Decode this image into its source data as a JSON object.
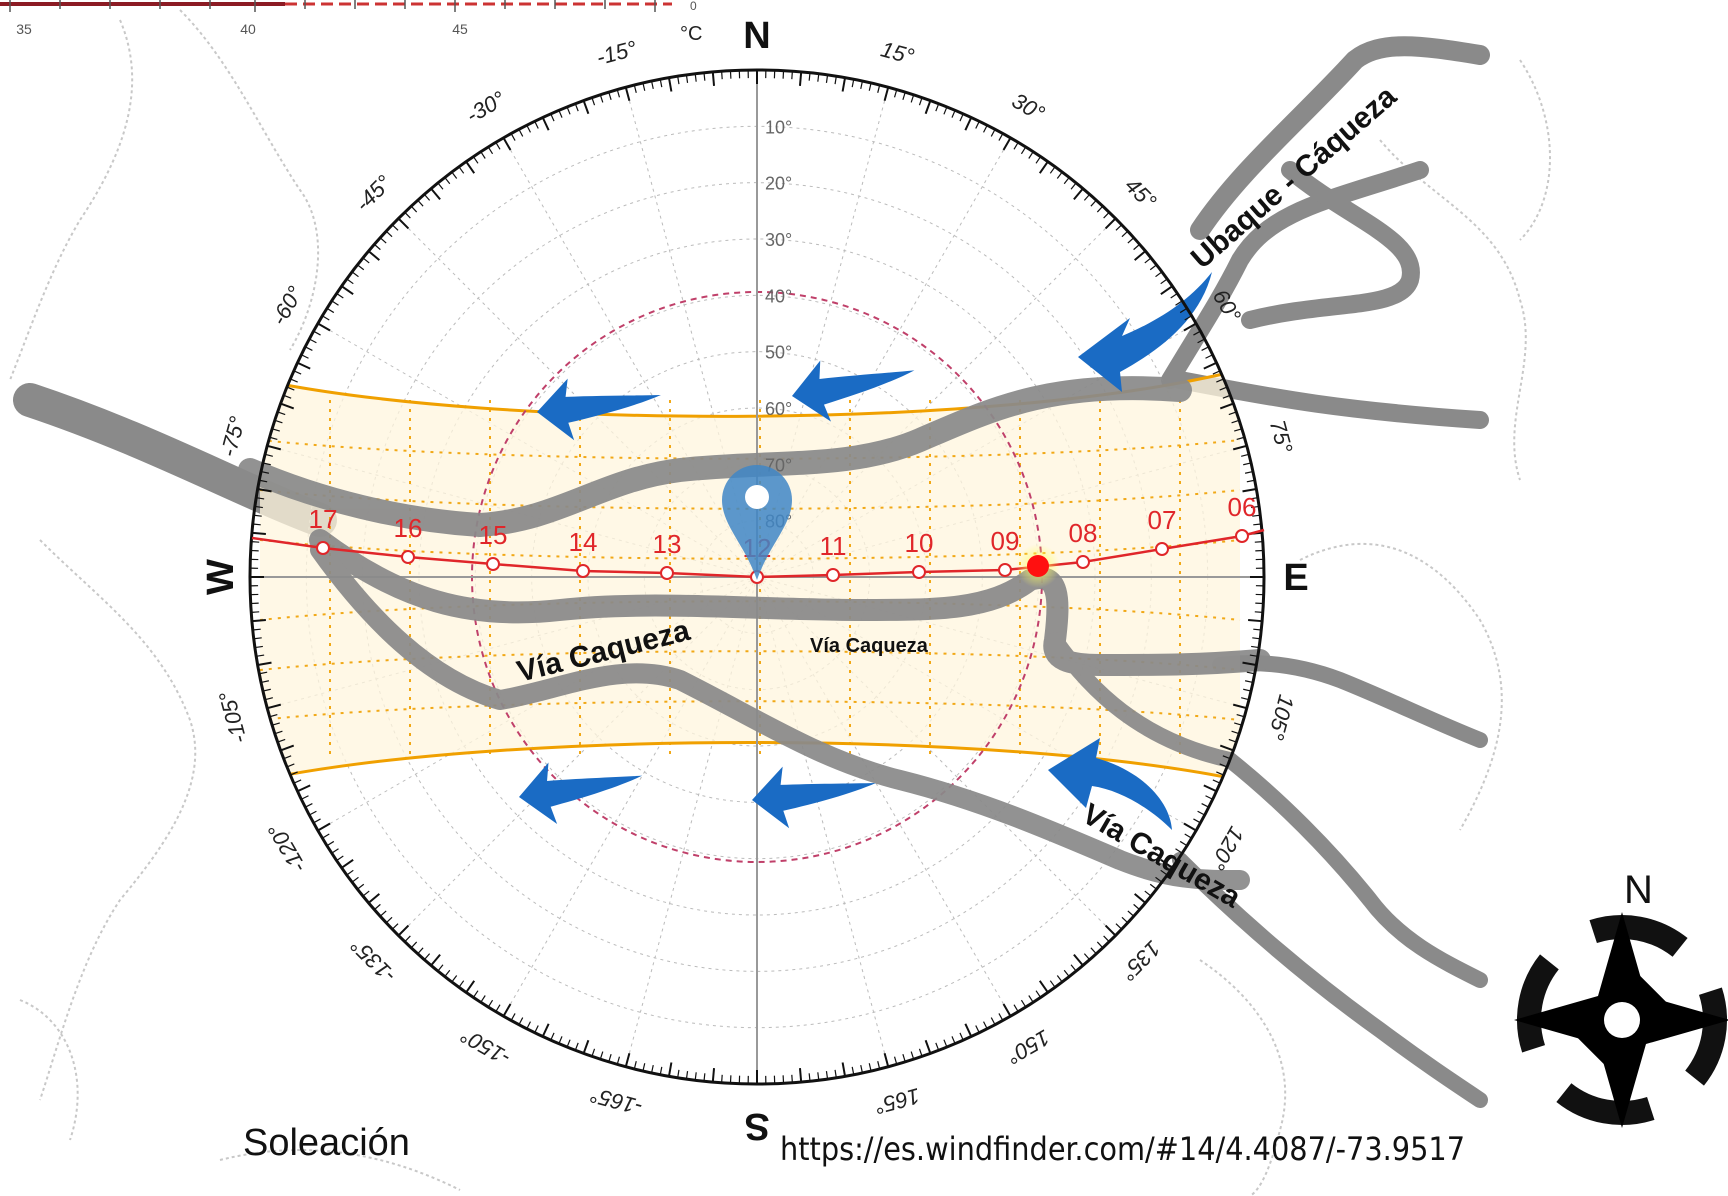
{
  "scale_bar": {
    "ticks": [
      "35",
      "40",
      "45"
    ],
    "end_value": "0"
  },
  "sun_path": {
    "cardinals": {
      "north": "N",
      "south": "S",
      "east": "E",
      "west": "W"
    },
    "azimuth_labels": [
      "15°",
      "30°",
      "45°",
      "60°",
      "75°",
      "105°",
      "120°",
      "135°",
      "150°",
      "165°",
      "-165°",
      "-150°",
      "-135°",
      "-120°",
      "-105°",
      "-75°",
      "-60°",
      "-45°",
      "-30°",
      "-15°"
    ],
    "temp_unit": "°C",
    "altitude_labels": [
      "10°",
      "20°",
      "30°",
      "40°",
      "50°",
      "60°",
      "70°",
      "80°"
    ],
    "hours": [
      "06",
      "07",
      "08",
      "09",
      "10",
      "11",
      "12",
      "13",
      "14",
      "15",
      "16",
      "17"
    ]
  },
  "map": {
    "roads": [
      "Ubaque - Cáqueza",
      "Vía Caqueza",
      "Vía Caqueza",
      "Vía Caqueza"
    ],
    "wind_direction": "east-to-west",
    "road_color": "#8a8a8a",
    "sun_path_color": "#e0262a",
    "wind_arrow_color": "#1a6bc4",
    "daylight_band_color": "#f0a000"
  },
  "caption": {
    "title": "Soleación",
    "source": "https://es.windfinder.com/#14/4.4087/-73.9517"
  },
  "north_arrow": {
    "label": "N",
    "icon": "compass-rose-icon"
  }
}
